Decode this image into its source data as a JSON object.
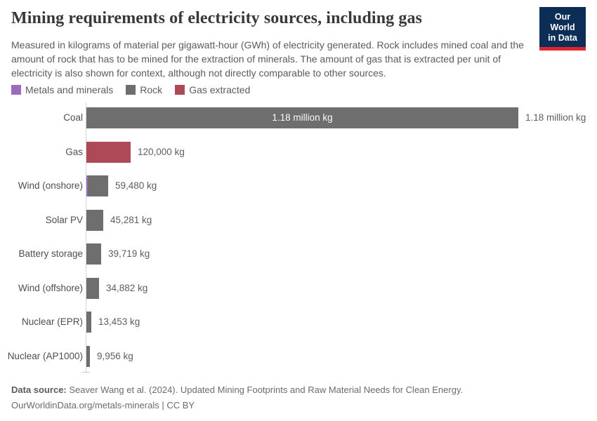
{
  "header": {
    "title": "Mining requirements of electricity sources, including gas",
    "subtitle": "Measured in kilograms of material per gigawatt-hour (GWh) of electricity generated. Rock includes mined coal and the amount of rock that has to be mined for the extraction of minerals. The amount of gas that is extracted per unit of electricity is also shown for context, although not directly comparable to other sources.",
    "logo": {
      "line1": "Our World",
      "line2": "in Data",
      "bg_color": "#0c2d56",
      "accent_color": "#e0262d"
    }
  },
  "legend": {
    "items": [
      {
        "label": "Metals and minerals",
        "color": "#9b6cb7"
      },
      {
        "label": "Rock",
        "color": "#6e6e6e"
      },
      {
        "label": "Gas extracted",
        "color": "#ae4a57"
      }
    ]
  },
  "chart_data": {
    "type": "bar",
    "orientation": "horizontal",
    "unit": "kg of material per GWh",
    "xlim": [
      0,
      1180000
    ],
    "grid": false,
    "categories": [
      "Coal",
      "Gas",
      "Wind (onshore)",
      "Solar PV",
      "Battery storage",
      "Wind (offshore)",
      "Nuclear (EPR)",
      "Nuclear (AP1000)"
    ],
    "bars": [
      {
        "category": "Coal",
        "value": 1180000,
        "series": "Rock",
        "color": "#6e6e6e",
        "label": "1.18 million kg",
        "label_inside": "1.18 million kg"
      },
      {
        "category": "Gas",
        "value": 120000,
        "series": "Gas extracted",
        "color": "#ae4a57",
        "label": "120,000 kg"
      },
      {
        "category": "Wind (onshore)",
        "value": 59480,
        "series": "Rock",
        "color": "#6e6e6e",
        "label": "59,480 kg",
        "metals_sliver": true,
        "metals_color": "#9b6cb7"
      },
      {
        "category": "Solar PV",
        "value": 45281,
        "series": "Rock",
        "color": "#6e6e6e",
        "label": "45,281 kg"
      },
      {
        "category": "Battery storage",
        "value": 39719,
        "series": "Rock",
        "color": "#6e6e6e",
        "label": "39,719 kg"
      },
      {
        "category": "Wind (offshore)",
        "value": 34882,
        "series": "Rock",
        "color": "#6e6e6e",
        "label": "34,882 kg"
      },
      {
        "category": "Nuclear (EPR)",
        "value": 13453,
        "series": "Rock",
        "color": "#6e6e6e",
        "label": "13,453 kg"
      },
      {
        "category": "Nuclear (AP1000)",
        "value": 9956,
        "series": "Rock",
        "color": "#6e6e6e",
        "label": "9,956 kg"
      }
    ]
  },
  "footer": {
    "source_label": "Data source:",
    "source_text": " Seaver Wang et al. (2024). Updated Mining Footprints and Raw Material Needs for Clean Energy.",
    "license_text": "OurWorldinData.org/metals-minerals | CC BY"
  }
}
